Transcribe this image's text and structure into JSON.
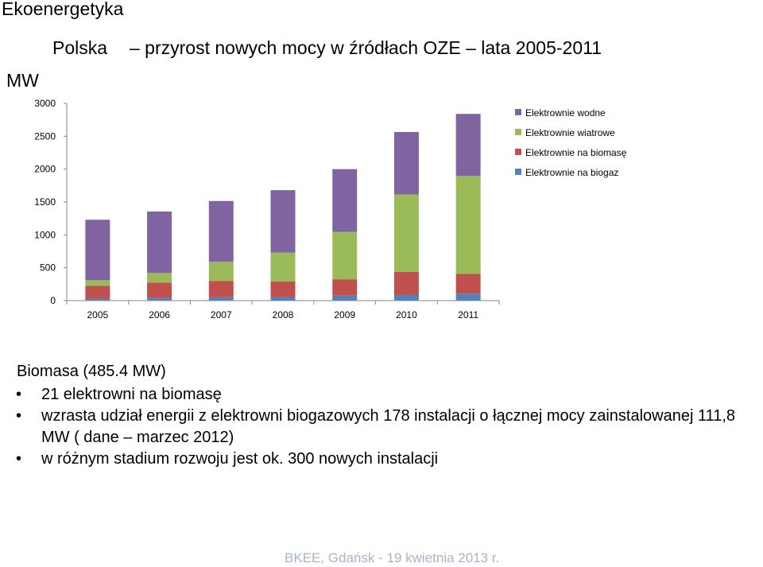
{
  "slide": {
    "title": "Ekoenergetyka",
    "chart_title_left": "Polska",
    "chart_title_right": "– przyrost nowych mocy w źródłach OZE – lata 2005-2011",
    "unit_label": "MW",
    "section_heading": "Biomasa (485.4 MW)",
    "bullets": [
      "21 elektrowni na biomasę",
      "wzrasta udział energii z elektrowni biogazowych 178 instalacji o łącznej mocy zainstalowanej 111,8 MW ( dane – marzec 2012)",
      "w różnym stadium rozwoju jest ok. 300 nowych instalacji"
    ],
    "bullet_glyph": "•",
    "footer": "BKEE, Gdańsk - 19 kwietnia 2013 r."
  },
  "chart_data": {
    "type": "bar",
    "stacked": true,
    "categories": [
      "2005",
      "2006",
      "2007",
      "2008",
      "2009",
      "2010",
      "2011"
    ],
    "series": [
      {
        "name": "Elektrownie na biogaz",
        "color": "#4f81bd",
        "values": [
          30,
          40,
          50,
          55,
          75,
          85,
          105
        ]
      },
      {
        "name": "Elektrownie na biomasę",
        "color": "#c0504d",
        "values": [
          195,
          235,
          250,
          235,
          250,
          350,
          300
        ]
      },
      {
        "name": "Elektrownie wiatrowe",
        "color": "#9bbb59",
        "values": [
          85,
          145,
          290,
          440,
          720,
          1180,
          1490
        ]
      },
      {
        "name": "Elektrownie wodne",
        "color": "#8064a2",
        "values": [
          920,
          935,
          925,
          950,
          955,
          950,
          945
        ]
      }
    ],
    "legend_order": [
      "Elektrownie wodne",
      "Elektrownie wiatrowe",
      "Elektrownie na biomasę",
      "Elektrownie na biogaz"
    ],
    "y_ticks": [
      0,
      500,
      1000,
      1500,
      2000,
      2500,
      3000
    ],
    "ylim": [
      0,
      3000
    ],
    "grid": false,
    "legend_position": "top-right"
  }
}
